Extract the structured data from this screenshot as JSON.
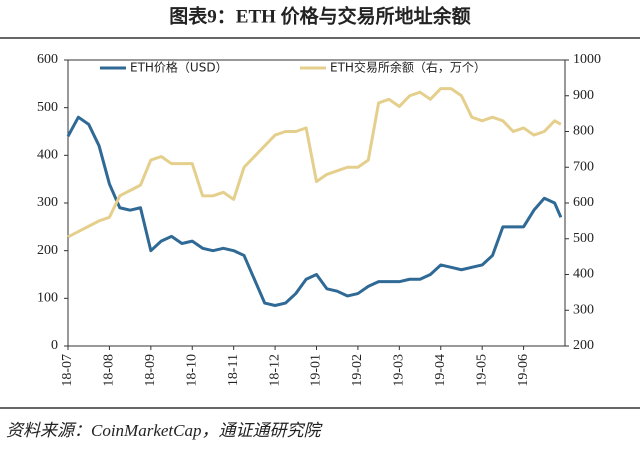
{
  "chart_data": {
    "type": "line",
    "title": "图表9：ETH 价格与交易所地址余额",
    "source": "资料来源：CoinMarketCap，通证通研究院",
    "x": [
      0,
      0.25,
      0.5,
      0.75,
      1,
      1.25,
      1.5,
      1.75,
      2,
      2.25,
      2.5,
      2.75,
      3,
      3.25,
      3.5,
      3.75,
      4,
      4.25,
      4.5,
      4.75,
      5,
      5.25,
      5.5,
      5.75,
      6,
      6.25,
      6.5,
      6.75,
      7,
      7.25,
      7.5,
      7.75,
      8,
      8.25,
      8.5,
      8.75,
      9,
      9.25,
      9.5,
      9.75,
      10,
      10.25,
      10.5,
      10.75,
      11,
      11.25,
      11.5,
      11.75,
      11.9
    ],
    "xlim": [
      0,
      12
    ],
    "xticks": [
      {
        "value": 0,
        "label": "18-07"
      },
      {
        "value": 1,
        "label": "18-08"
      },
      {
        "value": 2,
        "label": "18-09"
      },
      {
        "value": 3,
        "label": "18-10"
      },
      {
        "value": 4,
        "label": "18-11"
      },
      {
        "value": 5,
        "label": "18-12"
      },
      {
        "value": 6,
        "label": "19-01"
      },
      {
        "value": 7,
        "label": "19-02"
      },
      {
        "value": 8,
        "label": "19-03"
      },
      {
        "value": 9,
        "label": "19-04"
      },
      {
        "value": 10,
        "label": "19-05"
      },
      {
        "value": 11,
        "label": "19-06"
      }
    ],
    "ylim": [
      0,
      600
    ],
    "yticks": [
      0,
      100,
      200,
      300,
      400,
      500,
      600
    ],
    "y2lim": [
      200,
      1000
    ],
    "y2ticks": [
      200,
      300,
      400,
      500,
      600,
      700,
      800,
      900,
      1000
    ],
    "legend": "top",
    "series": [
      {
        "name": "ETH价格（USD）",
        "color": "#2f6995",
        "values": [
          440,
          480,
          465,
          420,
          340,
          290,
          285,
          290,
          200,
          220,
          230,
          215,
          220,
          205,
          200,
          205,
          200,
          190,
          140,
          90,
          85,
          90,
          110,
          140,
          150,
          120,
          115,
          105,
          110,
          125,
          135,
          135,
          135,
          140,
          140,
          150,
          170,
          165,
          160,
          165,
          170,
          190,
          250,
          250,
          250,
          285,
          310,
          300,
          270
        ]
      },
      {
        "name": "ETH交易所余额（右，万个）",
        "color": "#e5cf8c",
        "axis": "y2",
        "values": [
          505,
          520,
          535,
          550,
          560,
          620,
          635,
          650,
          720,
          730,
          710,
          710,
          710,
          620,
          620,
          630,
          610,
          700,
          730,
          760,
          790,
          800,
          800,
          810,
          660,
          680,
          690,
          700,
          700,
          720,
          880,
          890,
          870,
          900,
          910,
          890,
          920,
          920,
          900,
          840,
          830,
          840,
          830,
          800,
          810,
          790,
          800,
          830,
          820
        ]
      }
    ]
  }
}
